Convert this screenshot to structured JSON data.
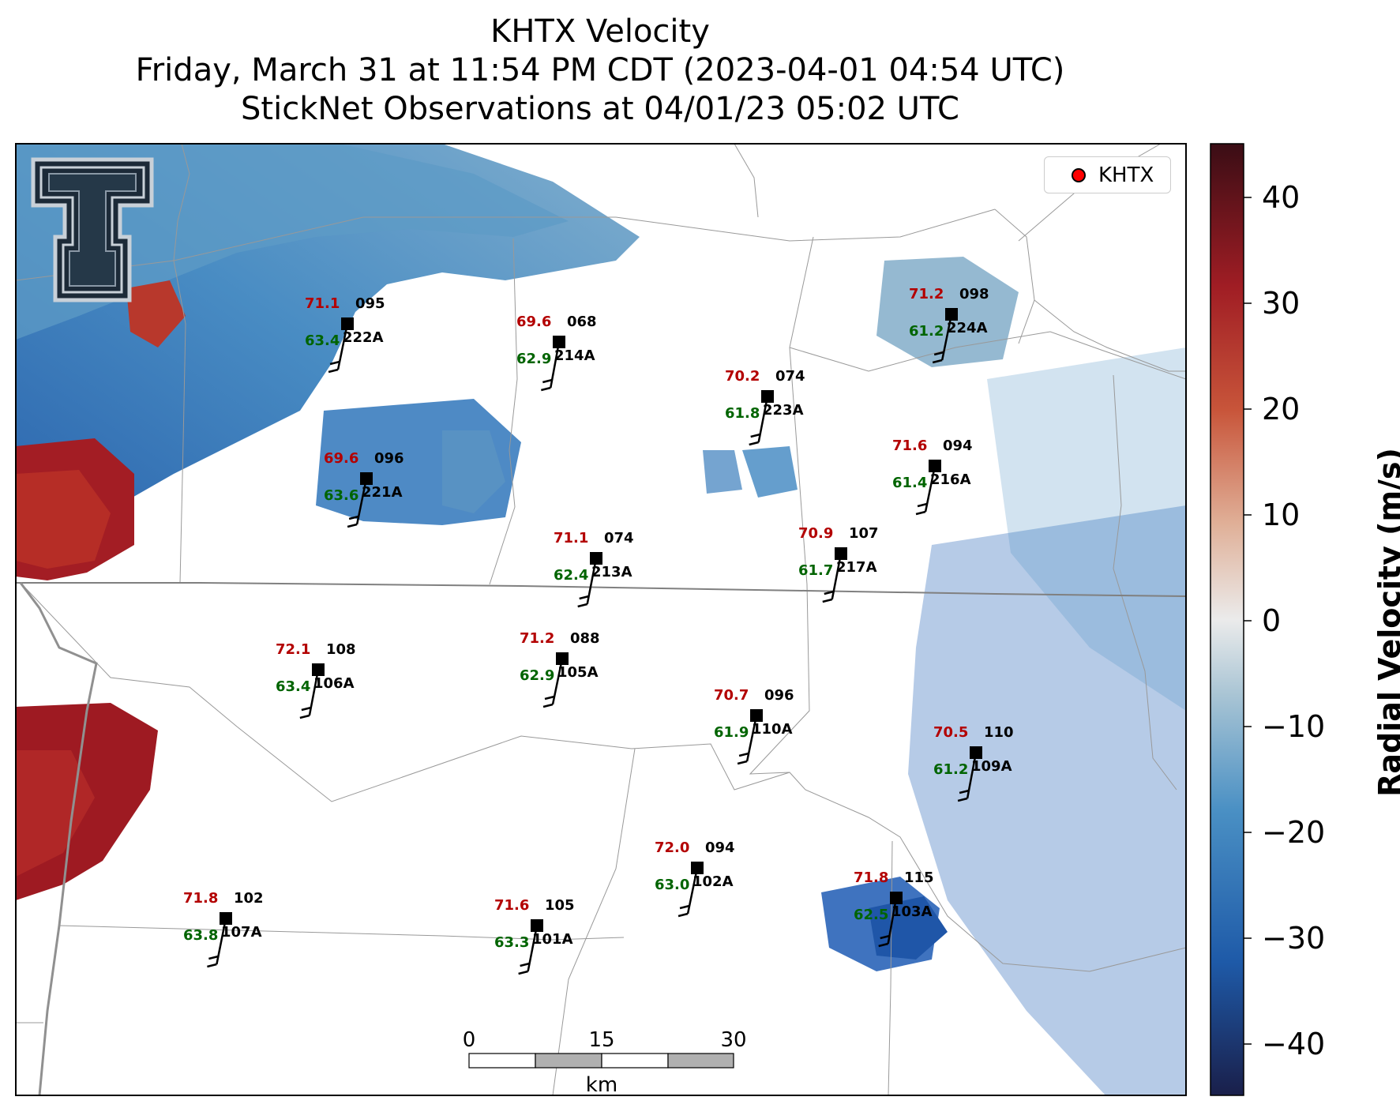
{
  "title": {
    "line1": "KHTX Velocity",
    "line2": "Friday, March 31 at 11:54 PM CDT (2023-04-01 04:54 UTC)",
    "line3": "StickNet Observations at 04/01/23 05:02 UTC"
  },
  "legend": {
    "label": "KHTX",
    "marker_color": "#ff0000"
  },
  "colorbar": {
    "label": "Radial Velocity (m/s)",
    "ticks": [
      "40",
      "30",
      "20",
      "10",
      "0",
      "−10",
      "−20",
      "−30",
      "−40"
    ],
    "range": [
      -45,
      45
    ],
    "colors": [
      "#1a1f4a",
      "#1e5aa8",
      "#4a90c4",
      "#a8c4d4",
      "#ebebeb",
      "#e0b098",
      "#c8553a",
      "#a01d24",
      "#3a0d15"
    ]
  },
  "scale_bar": {
    "labels": [
      "0",
      "15",
      "30"
    ],
    "unit": "km"
  },
  "logo": {
    "name": "texas-tech-double-t-logo"
  },
  "stations": [
    {
      "id": "222A",
      "temp": "71.1",
      "dew": "63.4",
      "dir": "095"
    },
    {
      "id": "214A",
      "temp": "69.6",
      "dew": "62.9",
      "dir": "068"
    },
    {
      "id": "224A",
      "temp": "71.2",
      "dew": "61.2",
      "dir": "098"
    },
    {
      "id": "223A",
      "temp": "70.2",
      "dew": "61.8",
      "dir": "074"
    },
    {
      "id": "221A",
      "temp": "69.6",
      "dew": "63.6",
      "dir": "096"
    },
    {
      "id": "216A",
      "temp": "71.6",
      "dew": "61.4",
      "dir": "094"
    },
    {
      "id": "213A",
      "temp": "71.1",
      "dew": "62.4",
      "dir": "074"
    },
    {
      "id": "217A",
      "temp": "70.9",
      "dew": "61.7",
      "dir": "107"
    },
    {
      "id": "106A",
      "temp": "72.1",
      "dew": "63.4",
      "dir": "108"
    },
    {
      "id": "105A",
      "temp": "71.2",
      "dew": "62.9",
      "dir": "088"
    },
    {
      "id": "110A",
      "temp": "70.7",
      "dew": "61.9",
      "dir": "096"
    },
    {
      "id": "109A",
      "temp": "70.5",
      "dew": "61.2",
      "dir": "110"
    },
    {
      "id": "102A",
      "temp": "72.0",
      "dew": "63.0",
      "dir": "094"
    },
    {
      "id": "103A",
      "temp": "71.8",
      "dew": "62.5",
      "dir": "115"
    },
    {
      "id": "107A",
      "temp": "71.8",
      "dew": "63.8",
      "dir": "102"
    },
    {
      "id": "101A",
      "temp": "71.6",
      "dew": "63.3",
      "dir": "105"
    }
  ],
  "colors": {
    "temperature_text": "#b30000",
    "dewpoint_text": "#006400",
    "station_text": "#000000"
  }
}
